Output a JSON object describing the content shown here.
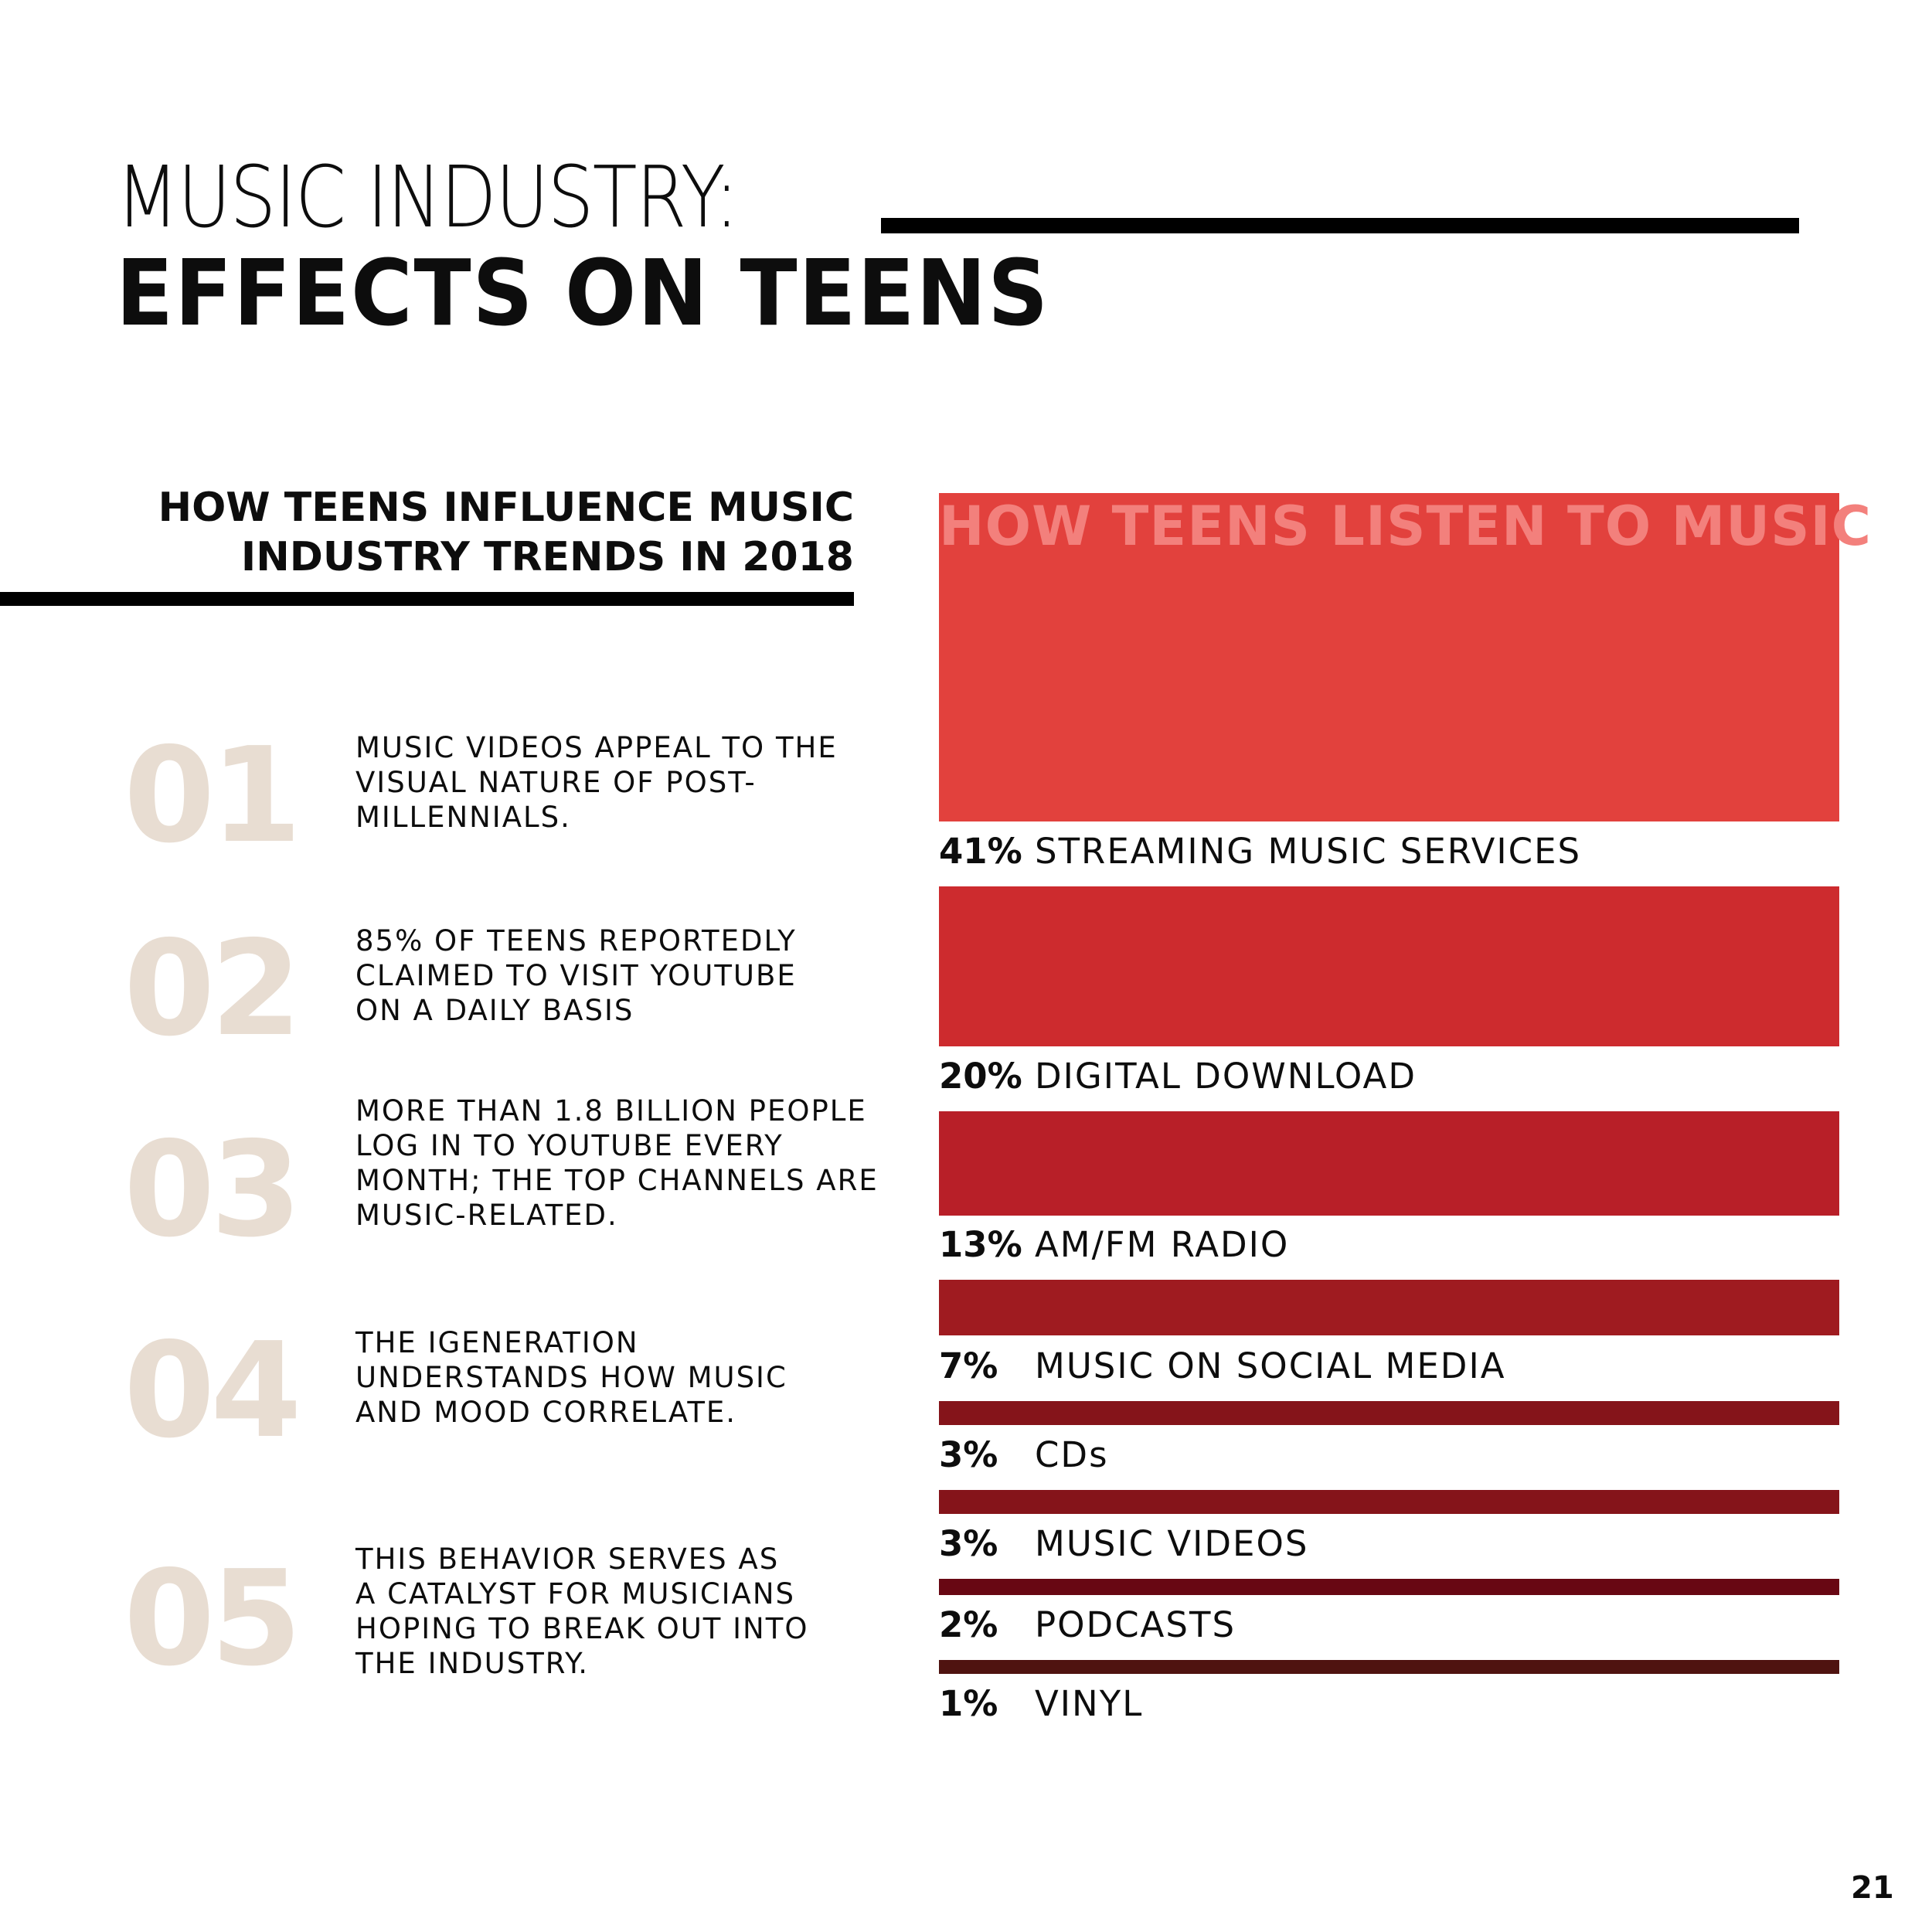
{
  "header": {
    "title_line1": "MUSIC INDUSTRY:",
    "title_line2": "EFFECTS ON TEENS"
  },
  "influence": {
    "heading_line1": "HOW  TEENS INFLUENCE MUSIC",
    "heading_line2": "INDUSTRY TRENDS IN 2018",
    "items": [
      {
        "num": "01",
        "lines": [
          "MUSIC VIDEOS APPEAL TO THE",
          "VISUAL NATURE OF POST-",
          "MILLENNIALS."
        ]
      },
      {
        "num": "02",
        "lines": [
          "85% OF TEENS REPORTEDLY",
          "CLAIMED TO VISIT YOUTUBE",
          "ON A DAILY BASIS"
        ]
      },
      {
        "num": "03",
        "lines": [
          "MORE THAN 1.8 BILLION PEOPLE",
          "LOG IN TO YOUTUBE EVERY",
          "MONTH; THE TOP CHANNELS ARE",
          "MUSIC-RELATED."
        ]
      },
      {
        "num": "04",
        "lines": [
          "THE IGENERATION",
          "UNDERSTANDS HOW MUSIC",
          "AND MOOD CORRELATE."
        ]
      },
      {
        "num": "05",
        "lines": [
          "THIS BEHAVIOR SERVES AS",
          "A CATALYST FOR MUSICIANS",
          "HOPING TO BREAK OUT INTO",
          "THE INDUSTRY."
        ]
      }
    ]
  },
  "chart_data": {
    "type": "bar",
    "orientation": "horizontal-bands",
    "title": "HOW TEENS LISTEN TO MUSIC",
    "unit": "%",
    "categories": [
      "STREAMING MUSIC SERVICES",
      "DIGITAL DOWNLOAD",
      "AM/FM RADIO",
      "MUSIC ON SOCIAL MEDIA",
      "CDs",
      "MUSIC VIDEOS",
      "PODCASTS",
      "VINYL"
    ],
    "values": [
      41,
      20,
      13,
      7,
      3,
      3,
      2,
      1
    ],
    "value_labels": [
      "41%",
      "20%",
      "13%",
      "7%",
      "3%",
      "3%",
      "2%",
      "1%"
    ],
    "colors": [
      "#e2413d",
      "#cd2b2e",
      "#b81f28",
      "#9f1b20",
      "#85141a",
      "#85141a",
      "#680713",
      "#4f1310"
    ]
  },
  "footer": {
    "page_number": "21"
  }
}
